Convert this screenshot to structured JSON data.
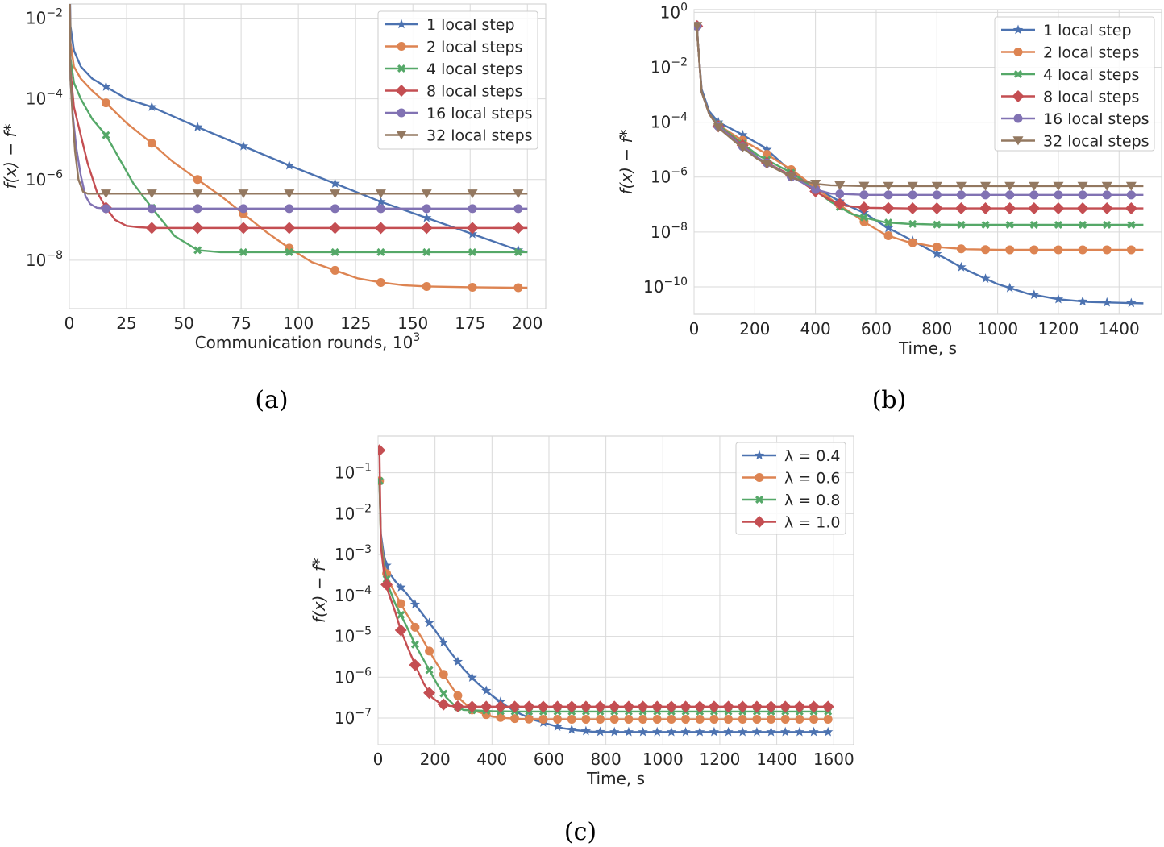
{
  "chart_data": [
    {
      "type": "line",
      "panel_label": "(a)",
      "xlabel": "Communication rounds, 10",
      "xlabel_sup": "3",
      "ylabel": "f(x) − f*",
      "ylog": true,
      "xlim": [
        0,
        208
      ],
      "ylim_exp": [
        -9.2,
        -1.65
      ],
      "xticks": [
        0,
        25,
        50,
        75,
        100,
        125,
        150,
        175,
        200
      ],
      "yticks_exp": [
        -8,
        -6,
        -4,
        -2
      ],
      "legend_position": "upper right",
      "series": [
        {
          "name": "1 local step",
          "color": "#4c72b0",
          "marker": "star",
          "x": [
            0,
            0.5,
            2,
            5,
            10,
            16,
            25,
            36,
            50,
            56,
            75,
            96,
            116,
            136,
            156,
            176,
            196,
            200
          ],
          "y_exp": [
            -0.6,
            -2.2,
            -2.8,
            -3.2,
            -3.5,
            -3.7,
            -4.0,
            -4.2,
            -4.55,
            -4.7,
            -5.15,
            -5.65,
            -6.1,
            -6.55,
            -6.95,
            -7.35,
            -7.75,
            -7.8
          ]
        },
        {
          "name": "2 local steps",
          "color": "#dd8452",
          "marker": "circle",
          "x": [
            0,
            0.5,
            2,
            5,
            10,
            16,
            25,
            36,
            45,
            56,
            66,
            76,
            86,
            96,
            106,
            116,
            126,
            136,
            146,
            156,
            176,
            196,
            200
          ],
          "y_exp": [
            -0.6,
            -2.6,
            -3.2,
            -3.5,
            -3.8,
            -4.1,
            -4.6,
            -5.1,
            -5.55,
            -6.0,
            -6.4,
            -6.85,
            -7.3,
            -7.7,
            -8.05,
            -8.25,
            -8.45,
            -8.55,
            -8.62,
            -8.65,
            -8.67,
            -8.68,
            -8.68
          ]
        },
        {
          "name": "4 local steps",
          "color": "#55a868",
          "marker": "x",
          "x": [
            0,
            0.5,
            2,
            5,
            10,
            16,
            22,
            28,
            36,
            46,
            56,
            66,
            76,
            96,
            116,
            136,
            156,
            176,
            196,
            200
          ],
          "y_exp": [
            -0.6,
            -3.0,
            -3.6,
            -4.0,
            -4.5,
            -4.9,
            -5.5,
            -6.1,
            -6.7,
            -7.4,
            -7.75,
            -7.8,
            -7.8,
            -7.8,
            -7.8,
            -7.8,
            -7.8,
            -7.8,
            -7.8,
            -7.8
          ]
        },
        {
          "name": "8 local steps",
          "color": "#c44e52",
          "marker": "diamond",
          "x": [
            0,
            0.5,
            2,
            5,
            8,
            12,
            16,
            20,
            25,
            30,
            36,
            56,
            76,
            96,
            116,
            136,
            156,
            176,
            196,
            200
          ],
          "y_exp": [
            -0.6,
            -3.3,
            -4.2,
            -4.9,
            -5.6,
            -6.3,
            -6.7,
            -7.0,
            -7.15,
            -7.18,
            -7.2,
            -7.2,
            -7.2,
            -7.2,
            -7.2,
            -7.2,
            -7.2,
            -7.2,
            -7.2,
            -7.2
          ]
        },
        {
          "name": "16 local steps",
          "color": "#8172b3",
          "marker": "circle",
          "x": [
            0,
            0.5,
            1.5,
            3,
            5,
            7,
            9,
            12,
            16,
            36,
            56,
            76,
            96,
            116,
            136,
            156,
            176,
            196,
            200
          ],
          "y_exp": [
            -0.6,
            -3.5,
            -4.4,
            -5.2,
            -5.9,
            -6.4,
            -6.6,
            -6.7,
            -6.72,
            -6.72,
            -6.72,
            -6.72,
            -6.72,
            -6.72,
            -6.72,
            -6.72,
            -6.72,
            -6.72,
            -6.72
          ]
        },
        {
          "name": "32 local steps",
          "color": "#937860",
          "marker": "triangle-down",
          "x": [
            0,
            0.5,
            1.5,
            2.5,
            4,
            6,
            8,
            10,
            16,
            36,
            56,
            76,
            96,
            116,
            136,
            156,
            176,
            196,
            200
          ],
          "y_exp": [
            -0.6,
            -3.5,
            -4.5,
            -5.3,
            -6.0,
            -6.3,
            -6.35,
            -6.35,
            -6.35,
            -6.35,
            -6.35,
            -6.35,
            -6.35,
            -6.35,
            -6.35,
            -6.35,
            -6.35,
            -6.35,
            -6.35
          ]
        }
      ]
    },
    {
      "type": "line",
      "panel_label": "(b)",
      "xlabel": "Time, s",
      "ylabel": "f(x) − f*",
      "ylog": true,
      "xlim": [
        0,
        1540
      ],
      "ylim_exp": [
        -11,
        0.1
      ],
      "xticks": [
        0,
        200,
        400,
        600,
        800,
        1000,
        1200,
        1400
      ],
      "yticks_exp": [
        -10,
        -8,
        -6,
        -4,
        -2,
        0
      ],
      "legend_position": "upper right",
      "series": [
        {
          "name": "1 local step",
          "color": "#4c72b0",
          "marker": "star",
          "x": [
            10,
            12,
            25,
            50,
            80,
            150,
            230,
            330,
            400,
            450,
            500,
            560,
            630,
            700,
            800,
            900,
            1000,
            1100,
            1200,
            1300,
            1400,
            1480
          ],
          "y_exp": [
            -0.5,
            -1.0,
            -2.8,
            -3.6,
            -4.0,
            -4.4,
            -4.9,
            -5.9,
            -6.4,
            -6.7,
            -7.0,
            -7.3,
            -7.8,
            -8.2,
            -8.8,
            -9.4,
            -9.9,
            -10.25,
            -10.45,
            -10.55,
            -10.58,
            -10.6
          ]
        },
        {
          "name": "2 local steps",
          "color": "#dd8452",
          "marker": "circle",
          "x": [
            10,
            12,
            25,
            50,
            80,
            150,
            230,
            330,
            450,
            570,
            630,
            700,
            800,
            900,
            1000,
            1100,
            1200,
            1300,
            1400,
            1480
          ],
          "y_exp": [
            -0.5,
            -1.0,
            -2.9,
            -3.7,
            -4.1,
            -4.6,
            -5.1,
            -5.8,
            -6.8,
            -7.7,
            -8.1,
            -8.35,
            -8.55,
            -8.63,
            -8.65,
            -8.65,
            -8.65,
            -8.65,
            -8.65,
            -8.65
          ]
        },
        {
          "name": "4 local steps",
          "color": "#55a868",
          "marker": "x",
          "x": [
            10,
            12,
            25,
            50,
            80,
            150,
            210,
            330,
            450,
            520,
            570,
            630,
            700,
            800,
            900,
            1000,
            1100,
            1200,
            1300,
            1400,
            1480
          ],
          "y_exp": [
            -0.5,
            -1.0,
            -2.9,
            -3.7,
            -4.1,
            -4.7,
            -5.2,
            -5.9,
            -6.9,
            -7.35,
            -7.5,
            -7.65,
            -7.7,
            -7.73,
            -7.74,
            -7.74,
            -7.74,
            -7.74,
            -7.74,
            -7.74,
            -7.74
          ]
        },
        {
          "name": "8 local steps",
          "color": "#c44e52",
          "marker": "diamond",
          "x": [
            10,
            12,
            25,
            50,
            80,
            150,
            210,
            330,
            390,
            450,
            500,
            570,
            700,
            800,
            900,
            1000,
            1100,
            1200,
            1300,
            1400,
            1480
          ],
          "y_exp": [
            -0.5,
            -1.0,
            -2.9,
            -3.7,
            -4.15,
            -4.75,
            -5.3,
            -6.0,
            -6.45,
            -6.85,
            -7.05,
            -7.12,
            -7.14,
            -7.14,
            -7.14,
            -7.14,
            -7.14,
            -7.14,
            -7.14,
            -7.14,
            -7.14
          ]
        },
        {
          "name": "16 local steps",
          "color": "#8172b3",
          "marker": "circle",
          "x": [
            10,
            12,
            25,
            50,
            80,
            150,
            210,
            330,
            400,
            450,
            570,
            700,
            800,
            900,
            1000,
            1100,
            1200,
            1300,
            1400,
            1480
          ],
          "y_exp": [
            -0.5,
            -1.0,
            -2.9,
            -3.7,
            -4.15,
            -4.8,
            -5.3,
            -6.05,
            -6.45,
            -6.6,
            -6.65,
            -6.65,
            -6.65,
            -6.65,
            -6.65,
            -6.65,
            -6.65,
            -6.65,
            -6.65,
            -6.65
          ]
        },
        {
          "name": "32 local steps",
          "color": "#937860",
          "marker": "triangle-down",
          "x": [
            10,
            12,
            25,
            50,
            80,
            150,
            210,
            330,
            400,
            450,
            570,
            700,
            800,
            900,
            1000,
            1100,
            1200,
            1300,
            1400,
            1480
          ],
          "y_exp": [
            -0.5,
            -1.0,
            -2.9,
            -3.7,
            -4.2,
            -4.85,
            -5.35,
            -6.05,
            -6.25,
            -6.3,
            -6.33,
            -6.33,
            -6.33,
            -6.33,
            -6.33,
            -6.33,
            -6.33,
            -6.33,
            -6.33,
            -6.33
          ]
        }
      ]
    },
    {
      "type": "line",
      "panel_label": "(c)",
      "xlabel": "Time, s",
      "ylabel": "f(x) − f*",
      "ylog": true,
      "xlim": [
        0,
        1670
      ],
      "ylim_exp": [
        -7.65,
        -0.1
      ],
      "xticks": [
        0,
        200,
        400,
        600,
        800,
        1000,
        1200,
        1400,
        1600
      ],
      "yticks_exp": [
        -7,
        -6,
        -5,
        -4,
        -3,
        -2,
        -1
      ],
      "legend_position": "upper right",
      "series": [
        {
          "name": "λ = 0.4",
          "color": "#4c72b0",
          "marker": "star",
          "x": [
            5,
            10,
            20,
            35,
            60,
            100,
            150,
            200,
            250,
            300,
            350,
            400,
            450,
            500,
            550,
            600,
            650,
            700,
            750,
            800,
            1000,
            1200,
            1400,
            1590
          ],
          "y_exp": [
            -1.2,
            -2.5,
            -3.0,
            -3.4,
            -3.65,
            -3.95,
            -4.4,
            -4.85,
            -5.35,
            -5.8,
            -6.15,
            -6.45,
            -6.7,
            -6.9,
            -7.05,
            -7.15,
            -7.25,
            -7.3,
            -7.33,
            -7.34,
            -7.34,
            -7.34,
            -7.34,
            -7.34
          ]
        },
        {
          "name": "λ = 0.6",
          "color": "#dd8452",
          "marker": "circle",
          "x": [
            5,
            10,
            20,
            35,
            60,
            100,
            150,
            200,
            250,
            290,
            330,
            400,
            450,
            500,
            600,
            800,
            1000,
            1200,
            1400,
            1590
          ],
          "y_exp": [
            -1.2,
            -2.6,
            -3.2,
            -3.6,
            -3.95,
            -4.45,
            -5.0,
            -5.6,
            -6.15,
            -6.55,
            -6.8,
            -6.96,
            -7.0,
            -7.02,
            -7.03,
            -7.03,
            -7.03,
            -7.03,
            -7.03,
            -7.03
          ]
        },
        {
          "name": "λ = 0.8",
          "color": "#55a868",
          "marker": "x",
          "x": [
            5,
            10,
            20,
            35,
            60,
            100,
            130,
            170,
            210,
            240,
            270,
            300,
            400,
            500,
            600,
            800,
            1000,
            1200,
            1400,
            1590
          ],
          "y_exp": [
            -1.2,
            -2.7,
            -3.3,
            -3.75,
            -4.2,
            -4.75,
            -5.2,
            -5.7,
            -6.2,
            -6.5,
            -6.7,
            -6.8,
            -6.83,
            -6.84,
            -6.84,
            -6.84,
            -6.84,
            -6.84,
            -6.84,
            -6.84
          ]
        },
        {
          "name": "λ = 1.0",
          "color": "#c44e52",
          "marker": "diamond",
          "x": [
            5,
            10,
            20,
            35,
            60,
            80,
            100,
            130,
            160,
            190,
            220,
            250,
            300,
            400,
            500,
            600,
            800,
            1000,
            1200,
            1400,
            1590
          ],
          "y_exp": [
            -0.45,
            -2.8,
            -3.4,
            -3.9,
            -4.4,
            -4.85,
            -5.2,
            -5.7,
            -6.15,
            -6.5,
            -6.65,
            -6.7,
            -6.72,
            -6.72,
            -6.72,
            -6.72,
            -6.72,
            -6.72,
            -6.72,
            -6.72,
            -6.72
          ]
        }
      ]
    }
  ]
}
